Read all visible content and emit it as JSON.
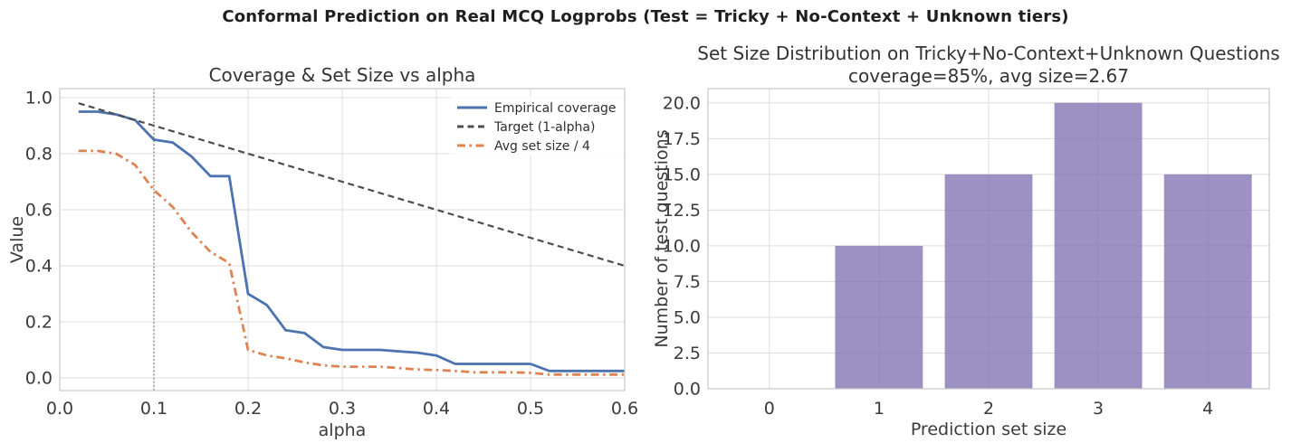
{
  "figure_title": "Conformal Prediction on Real MCQ Logprobs (Test = Tricky + No-Context + Unknown tiers)",
  "colors": {
    "coverage_line": "#4C72B0",
    "target_line": "#4d4d4d",
    "avg_set_size_line": "#DD8452",
    "bar_fill": "#8172B3",
    "vline": "#7f7f7f",
    "grid": "#dcdcdc",
    "spine": "#c8c8c8",
    "tick_text": "#3b3b3b",
    "title_text": "#333333",
    "background": "#ffffff"
  },
  "chart_data": [
    {
      "type": "line",
      "title": "Coverage & Set Size vs alpha",
      "xlabel": "alpha",
      "ylabel": "Value",
      "xlim": [
        0.0,
        0.6
      ],
      "ylim": [
        -0.045,
        1.035
      ],
      "xticks": [
        0.0,
        0.1,
        0.2,
        0.3,
        0.4,
        0.5,
        0.6
      ],
      "yticks": [
        0.0,
        0.2,
        0.4,
        0.6,
        0.8,
        1.0
      ],
      "grid": true,
      "legend_position": "upper right",
      "vline_x": 0.1,
      "x": [
        0.02,
        0.04,
        0.06,
        0.08,
        0.1,
        0.12,
        0.14,
        0.16,
        0.18,
        0.2,
        0.22,
        0.24,
        0.26,
        0.28,
        0.3,
        0.32,
        0.34,
        0.36,
        0.38,
        0.4,
        0.42,
        0.44,
        0.46,
        0.48,
        0.5,
        0.52,
        0.54,
        0.56,
        0.58,
        0.6
      ],
      "series": [
        {
          "name": "Empirical coverage",
          "style": "solid",
          "color": "#4C72B0",
          "values": [
            0.95,
            0.95,
            0.94,
            0.92,
            0.85,
            0.84,
            0.79,
            0.72,
            0.72,
            0.3,
            0.26,
            0.17,
            0.16,
            0.11,
            0.1,
            0.1,
            0.1,
            0.095,
            0.09,
            0.08,
            0.05,
            0.05,
            0.05,
            0.05,
            0.05,
            0.025,
            0.025,
            0.025,
            0.025,
            0.025
          ]
        },
        {
          "name": "Target (1-alpha)",
          "style": "dashed",
          "color": "#4d4d4d",
          "values": [
            0.98,
            0.96,
            0.94,
            0.92,
            0.9,
            0.88,
            0.86,
            0.84,
            0.82,
            0.8,
            0.78,
            0.76,
            0.74,
            0.72,
            0.7,
            0.68,
            0.66,
            0.64,
            0.62,
            0.6,
            0.58,
            0.56,
            0.54,
            0.52,
            0.5,
            0.48,
            0.46,
            0.44,
            0.42,
            0.4
          ]
        },
        {
          "name": "Avg set size / 4",
          "style": "dashdot",
          "color": "#DD8452",
          "values": [
            0.81,
            0.81,
            0.8,
            0.76,
            0.67,
            0.61,
            0.52,
            0.45,
            0.41,
            0.1,
            0.08,
            0.07,
            0.055,
            0.045,
            0.04,
            0.04,
            0.04,
            0.035,
            0.03,
            0.028,
            0.025,
            0.02,
            0.02,
            0.02,
            0.018,
            0.012,
            0.012,
            0.012,
            0.012,
            0.012
          ]
        }
      ]
    },
    {
      "type": "bar",
      "title": "Set Size Distribution on Tricky+No-Context+Unknown Questions",
      "subtitle": "coverage=85%, avg size=2.67",
      "xlabel": "Prediction set size",
      "ylabel": "Number of test questions",
      "categories": [
        0,
        1,
        2,
        3,
        4
      ],
      "values": [
        0,
        10,
        15,
        20,
        15
      ],
      "yticks": [
        0.0,
        2.5,
        5.0,
        7.5,
        10.0,
        12.5,
        15.0,
        17.5,
        20.0
      ],
      "ylim": [
        0,
        21
      ],
      "grid": true,
      "bar_color": "#8172B3"
    }
  ]
}
